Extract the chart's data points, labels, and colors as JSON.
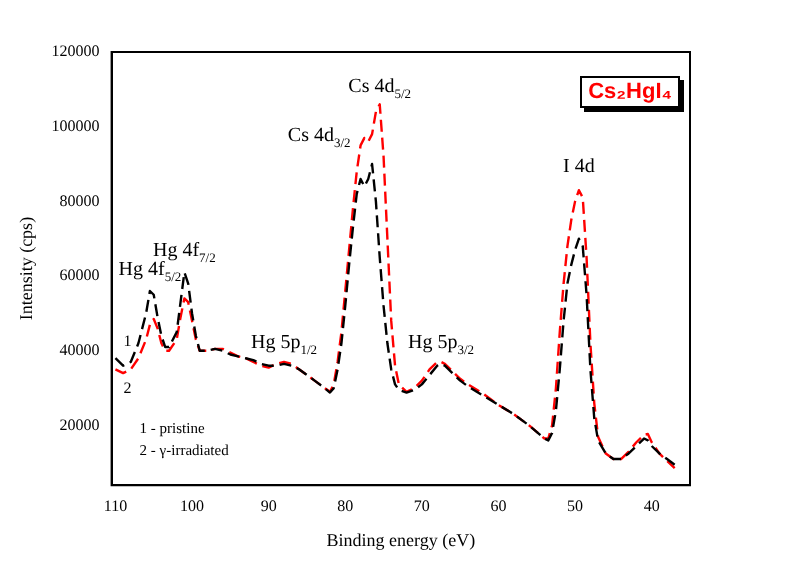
{
  "chart_data": {
    "type": "line",
    "title": "Cs₂HgI₄",
    "xlabel": "Binding energy (eV)",
    "ylabel": "Intensity (cps)",
    "xlim": [
      110.5,
      35
    ],
    "xticks": [
      110,
      100,
      90,
      80,
      70,
      60,
      50,
      40
    ],
    "ylim": [
      4000,
      120000
    ],
    "yticks": [
      20000,
      40000,
      60000,
      80000,
      100000,
      120000
    ],
    "grid": false,
    "legend": false,
    "marker": "none",
    "line_style": "dashed",
    "x": [
      110,
      109,
      108,
      107,
      106,
      105.5,
      105,
      104.5,
      104,
      103.5,
      103,
      102,
      101.5,
      101,
      100.5,
      100,
      99.5,
      99,
      98,
      97,
      96,
      95,
      94,
      93,
      92,
      91,
      90,
      89,
      88,
      87,
      86,
      85,
      84,
      83,
      82,
      81.5,
      81,
      80.5,
      80,
      79.5,
      79,
      78.5,
      78,
      77.5,
      77,
      76.5,
      76,
      75.5,
      75,
      74.5,
      74,
      73.5,
      73,
      72,
      71,
      70,
      69,
      68,
      67.5,
      67,
      66,
      65,
      64,
      62,
      60,
      58,
      56,
      54,
      53.5,
      53,
      52.5,
      52,
      51.5,
      51,
      50.5,
      50,
      49.5,
      49,
      48.5,
      48,
      47.5,
      47,
      46,
      45,
      44,
      43,
      42,
      41,
      40.5,
      40,
      39,
      38,
      37
    ],
    "series": [
      {
        "name": "1",
        "color": "#000000",
        "values": [
          38000,
          36000,
          37000,
          42000,
          50000,
          56000,
          55000,
          49000,
          44000,
          41000,
          41000,
          45000,
          53000,
          61000,
          58000,
          50000,
          44000,
          40000,
          40000,
          40500,
          40000,
          39000,
          38500,
          38000,
          37500,
          36500,
          36000,
          36000,
          36500,
          36000,
          35000,
          33500,
          32000,
          30500,
          28800,
          30000,
          35000,
          42000,
          52000,
          63000,
          73000,
          82000,
          86000,
          84000,
          86000,
          90000,
          80000,
          65000,
          52000,
          42000,
          35000,
          31000,
          29500,
          28800,
          29500,
          31000,
          33500,
          36000,
          36500,
          36000,
          34000,
          32000,
          30500,
          28000,
          25500,
          23000,
          20000,
          16500,
          16000,
          18000,
          24000,
          35000,
          48000,
          58000,
          63000,
          67000,
          70000,
          68000,
          55000,
          35000,
          22000,
          16000,
          12500,
          11000,
          11000,
          12500,
          14500,
          16500,
          16000,
          14500,
          12500,
          11000,
          9500
        ]
      },
      {
        "name": "2",
        "color": "#ff0000",
        "values": [
          35000,
          34000,
          35000,
          38000,
          43000,
          47000,
          48500,
          46000,
          42000,
          40000,
          40000,
          43000,
          49000,
          54000,
          53000,
          48000,
          43000,
          40000,
          40000,
          40500,
          40500,
          39500,
          38500,
          38000,
          37000,
          36000,
          35500,
          36500,
          37000,
          36500,
          35000,
          33500,
          32000,
          30500,
          29000,
          31000,
          37000,
          45000,
          56000,
          67000,
          78000,
          88000,
          95000,
          97000,
          96000,
          98000,
          104000,
          106000,
          92000,
          70000,
          48000,
          36000,
          31000,
          29000,
          30000,
          32000,
          35000,
          37000,
          37000,
          36500,
          34500,
          32500,
          31000,
          28500,
          25500,
          23000,
          20000,
          16500,
          16500,
          20000,
          30000,
          45000,
          58000,
          68000,
          75000,
          80000,
          83000,
          81000,
          65000,
          42000,
          26000,
          17000,
          12500,
          11000,
          11000,
          13000,
          15500,
          17500,
          17700,
          15500,
          12500,
          10500,
          8600
        ]
      }
    ],
    "annotations": [
      {
        "text": "Hg 4f$_{5/2}$",
        "x": 105.5,
        "y": 56000
      },
      {
        "text": "Hg 4f$_{7/2}$",
        "x": 101,
        "y": 61000
      },
      {
        "text": "Cs 4d$_{3/2}$",
        "x": 78,
        "y": 95000
      },
      {
        "text": "Cs 4d$_{5/2}$",
        "x": 75.5,
        "y": 106000
      },
      {
        "text": "Hg 5p$_{1/2}$",
        "x": 88,
        "y": 37000
      },
      {
        "text": "Hg 5p$_{3/2}$",
        "x": 67.5,
        "y": 37000
      },
      {
        "text": "I 4d",
        "x": 49.5,
        "y": 83000
      },
      "1 - pristine",
      "2 - γ-irradiated"
    ]
  }
}
